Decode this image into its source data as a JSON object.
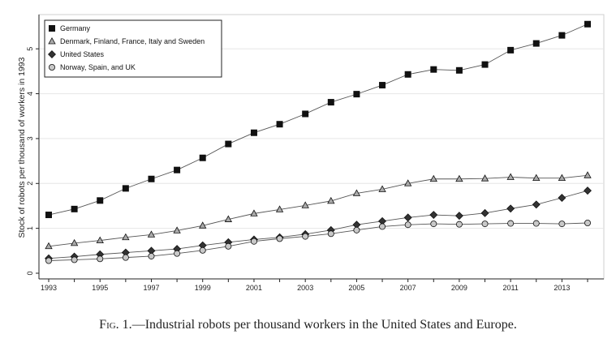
{
  "chart_data": {
    "type": "line",
    "title": "",
    "xlabel": "",
    "ylabel": "Stock of robots per thousand of workers in 1993",
    "xlim": [
      1993,
      2014
    ],
    "ylim": [
      0,
      5.6
    ],
    "x": [
      1993,
      1994,
      1995,
      1996,
      1997,
      1998,
      1999,
      2000,
      2001,
      2002,
      2003,
      2004,
      2005,
      2006,
      2007,
      2008,
      2009,
      2010,
      2011,
      2012,
      2013,
      2014
    ],
    "x_ticks": [
      "1993",
      "1995",
      "1997",
      "1999",
      "2001",
      "2003",
      "2005",
      "2007",
      "2009",
      "2011",
      "2013"
    ],
    "y_ticks": [
      "0",
      "1",
      "2",
      "3",
      "4",
      "5"
    ],
    "grid": "horizontal",
    "legend_position": "top-left",
    "series": [
      {
        "name": "Germany",
        "marker": "square",
        "fill": "#111111",
        "values": [
          1.3,
          1.43,
          1.62,
          1.89,
          2.1,
          2.3,
          2.57,
          2.88,
          3.13,
          3.32,
          3.55,
          3.81,
          3.99,
          4.19,
          4.43,
          4.54,
          4.52,
          4.65,
          4.97,
          5.12,
          5.3,
          5.55
        ]
      },
      {
        "name": "Denmark, Finland, France, Italy and Sweden",
        "marker": "triangle",
        "fill": "#aaaaaa",
        "values": [
          0.6,
          0.67,
          0.73,
          0.8,
          0.86,
          0.95,
          1.06,
          1.2,
          1.33,
          1.42,
          1.51,
          1.61,
          1.78,
          1.87,
          2.0,
          2.1,
          2.1,
          2.11,
          2.14,
          2.12,
          2.12,
          2.18
        ]
      },
      {
        "name": "United States",
        "marker": "diamond",
        "fill": "#333333",
        "values": [
          0.33,
          0.37,
          0.42,
          0.46,
          0.5,
          0.54,
          0.62,
          0.69,
          0.75,
          0.8,
          0.87,
          0.96,
          1.08,
          1.16,
          1.24,
          1.3,
          1.28,
          1.34,
          1.44,
          1.53,
          1.68,
          1.84
        ]
      },
      {
        "name": "Norway, Spain, and UK",
        "marker": "circle",
        "fill": "#c8c8c8",
        "values": [
          0.28,
          0.3,
          0.32,
          0.35,
          0.38,
          0.44,
          0.51,
          0.6,
          0.71,
          0.77,
          0.82,
          0.88,
          0.96,
          1.04,
          1.08,
          1.1,
          1.09,
          1.1,
          1.11,
          1.11,
          1.1,
          1.12
        ]
      }
    ]
  },
  "caption": {
    "fig_label": "Fig. 1.",
    "text": "—Industrial robots per thousand workers in the United States and Europe."
  }
}
